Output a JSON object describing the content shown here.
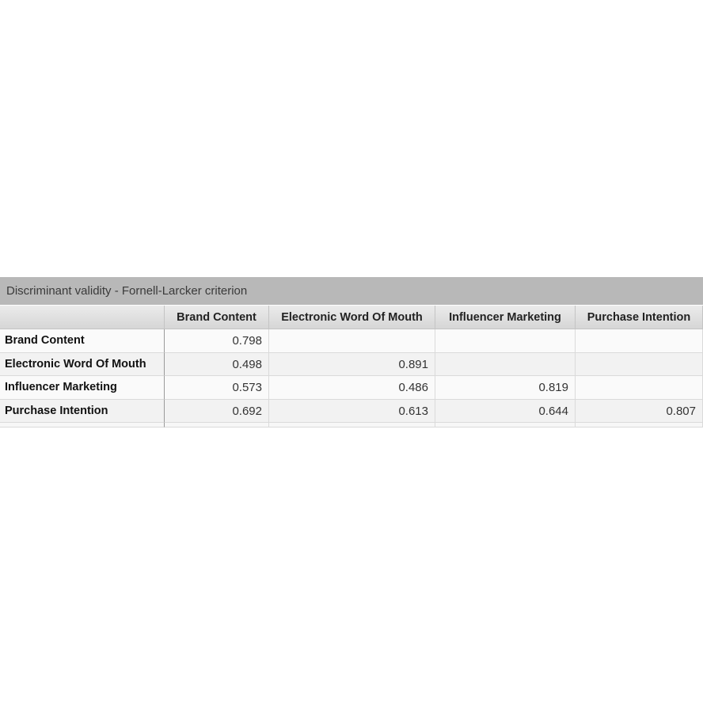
{
  "title": "Discriminant validity - Fornell-Larcker criterion",
  "table": {
    "columns": [
      "Brand Content",
      "Electronic Word Of Mouth",
      "Influencer Marketing",
      "Purchase Intention"
    ],
    "rows": [
      {
        "label": "Brand Content",
        "cells": [
          0.798,
          null,
          null,
          null
        ]
      },
      {
        "label": "Electronic Word Of Mouth",
        "cells": [
          0.498,
          0.891,
          null,
          null
        ]
      },
      {
        "label": "Influencer Marketing",
        "cells": [
          0.573,
          0.486,
          0.819,
          null
        ]
      },
      {
        "label": "Purchase Intention",
        "cells": [
          0.692,
          0.613,
          0.644,
          0.807
        ]
      }
    ]
  }
}
